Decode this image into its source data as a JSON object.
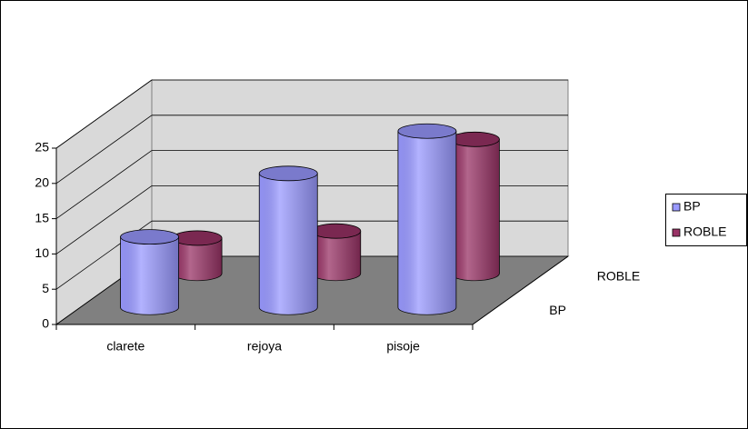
{
  "chart_data": {
    "type": "bar",
    "categories": [
      "clarete",
      "rejoya",
      "pisoje"
    ],
    "series": [
      {
        "name": "BP",
        "color": "#9999ff",
        "values": [
          10,
          19,
          25
        ]
      },
      {
        "name": "ROBLE",
        "color": "#993366",
        "values": [
          5,
          6,
          19
        ]
      }
    ],
    "ylim": [
      0,
      25
    ],
    "yticks": [
      0,
      5,
      10,
      15,
      20,
      25
    ],
    "grid": true,
    "legend": "right"
  }
}
